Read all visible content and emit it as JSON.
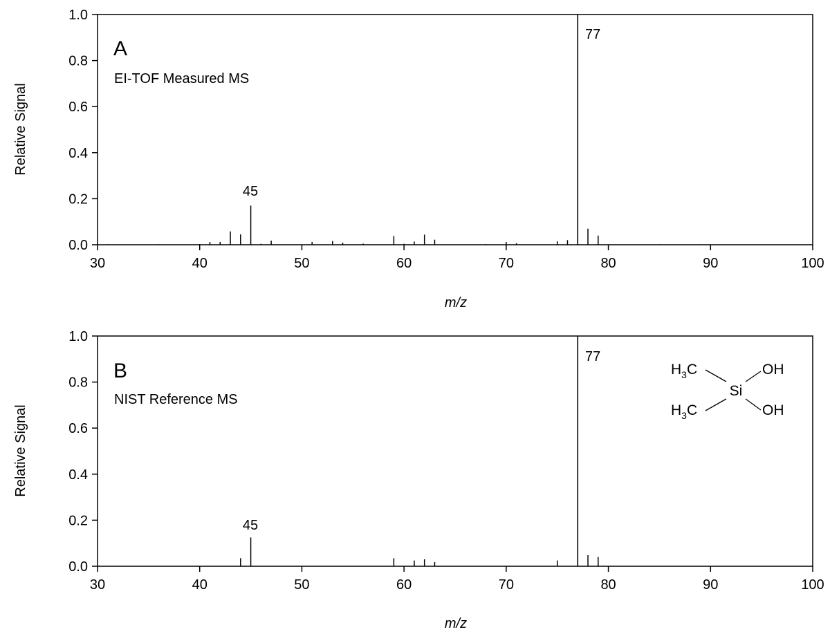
{
  "colors": {
    "line": "#000000",
    "background": "#ffffff"
  },
  "chart_data": [
    {
      "type": "bar",
      "panel_letter": "A",
      "subtitle": "EI-TOF Measured MS",
      "xlabel": "m/z",
      "ylabel": "Relative Signal",
      "xlim": [
        30,
        100
      ],
      "ylim": [
        0,
        1.0
      ],
      "xticks": [
        30,
        40,
        50,
        60,
        70,
        80,
        90,
        100
      ],
      "yticks": [
        "0.0",
        "0.2",
        "0.4",
        "0.6",
        "0.8",
        "1.0"
      ],
      "grid": false,
      "peak_labels": [
        {
          "x": 45,
          "y": 0.17,
          "text": "45"
        },
        {
          "x": 77,
          "y": 1.0,
          "text": "77"
        }
      ],
      "peaks": [
        {
          "x": 31,
          "y": 0.002
        },
        {
          "x": 36,
          "y": 0.002
        },
        {
          "x": 40,
          "y": 0.003
        },
        {
          "x": 41,
          "y": 0.012
        },
        {
          "x": 42,
          "y": 0.012
        },
        {
          "x": 43,
          "y": 0.058
        },
        {
          "x": 44,
          "y": 0.045
        },
        {
          "x": 45,
          "y": 0.17
        },
        {
          "x": 46,
          "y": 0.004
        },
        {
          "x": 47,
          "y": 0.018
        },
        {
          "x": 51,
          "y": 0.012
        },
        {
          "x": 53,
          "y": 0.016
        },
        {
          "x": 54,
          "y": 0.009
        },
        {
          "x": 56,
          "y": 0.005
        },
        {
          "x": 59,
          "y": 0.038
        },
        {
          "x": 60,
          "y": 0.004
        },
        {
          "x": 61,
          "y": 0.014
        },
        {
          "x": 62,
          "y": 0.044
        },
        {
          "x": 63,
          "y": 0.022
        },
        {
          "x": 68,
          "y": 0.003
        },
        {
          "x": 70,
          "y": 0.012
        },
        {
          "x": 71,
          "y": 0.007
        },
        {
          "x": 75,
          "y": 0.015
        },
        {
          "x": 76,
          "y": 0.02
        },
        {
          "x": 77,
          "y": 1.0
        },
        {
          "x": 78,
          "y": 0.07
        },
        {
          "x": 79,
          "y": 0.04
        },
        {
          "x": 85,
          "y": 0.002
        },
        {
          "x": 89,
          "y": 0.002
        }
      ]
    },
    {
      "type": "bar",
      "panel_letter": "B",
      "subtitle": "NIST Reference MS",
      "xlabel": "m/z",
      "ylabel": "Relative Signal",
      "xlim": [
        30,
        100
      ],
      "ylim": [
        0,
        1.0
      ],
      "xticks": [
        30,
        40,
        50,
        60,
        70,
        80,
        90,
        100
      ],
      "yticks": [
        "0.0",
        "0.2",
        "0.4",
        "0.6",
        "0.8",
        "1.0"
      ],
      "grid": false,
      "peak_labels": [
        {
          "x": 45,
          "y": 0.125,
          "text": "45"
        },
        {
          "x": 77,
          "y": 1.0,
          "text": "77"
        }
      ],
      "peaks": [
        {
          "x": 44,
          "y": 0.035
        },
        {
          "x": 45,
          "y": 0.125
        },
        {
          "x": 59,
          "y": 0.035
        },
        {
          "x": 61,
          "y": 0.025
        },
        {
          "x": 62,
          "y": 0.03
        },
        {
          "x": 63,
          "y": 0.018
        },
        {
          "x": 75,
          "y": 0.025
        },
        {
          "x": 77,
          "y": 1.0
        },
        {
          "x": 78,
          "y": 0.048
        },
        {
          "x": 79,
          "y": 0.04
        }
      ],
      "structure": {
        "upper_left": {
          "main": "H",
          "sub": "3",
          "tail": "C"
        },
        "lower_left": {
          "main": "H",
          "sub": "3",
          "tail": "C"
        },
        "center": "Si",
        "upper_right": "OH",
        "lower_right": "OH"
      }
    }
  ]
}
